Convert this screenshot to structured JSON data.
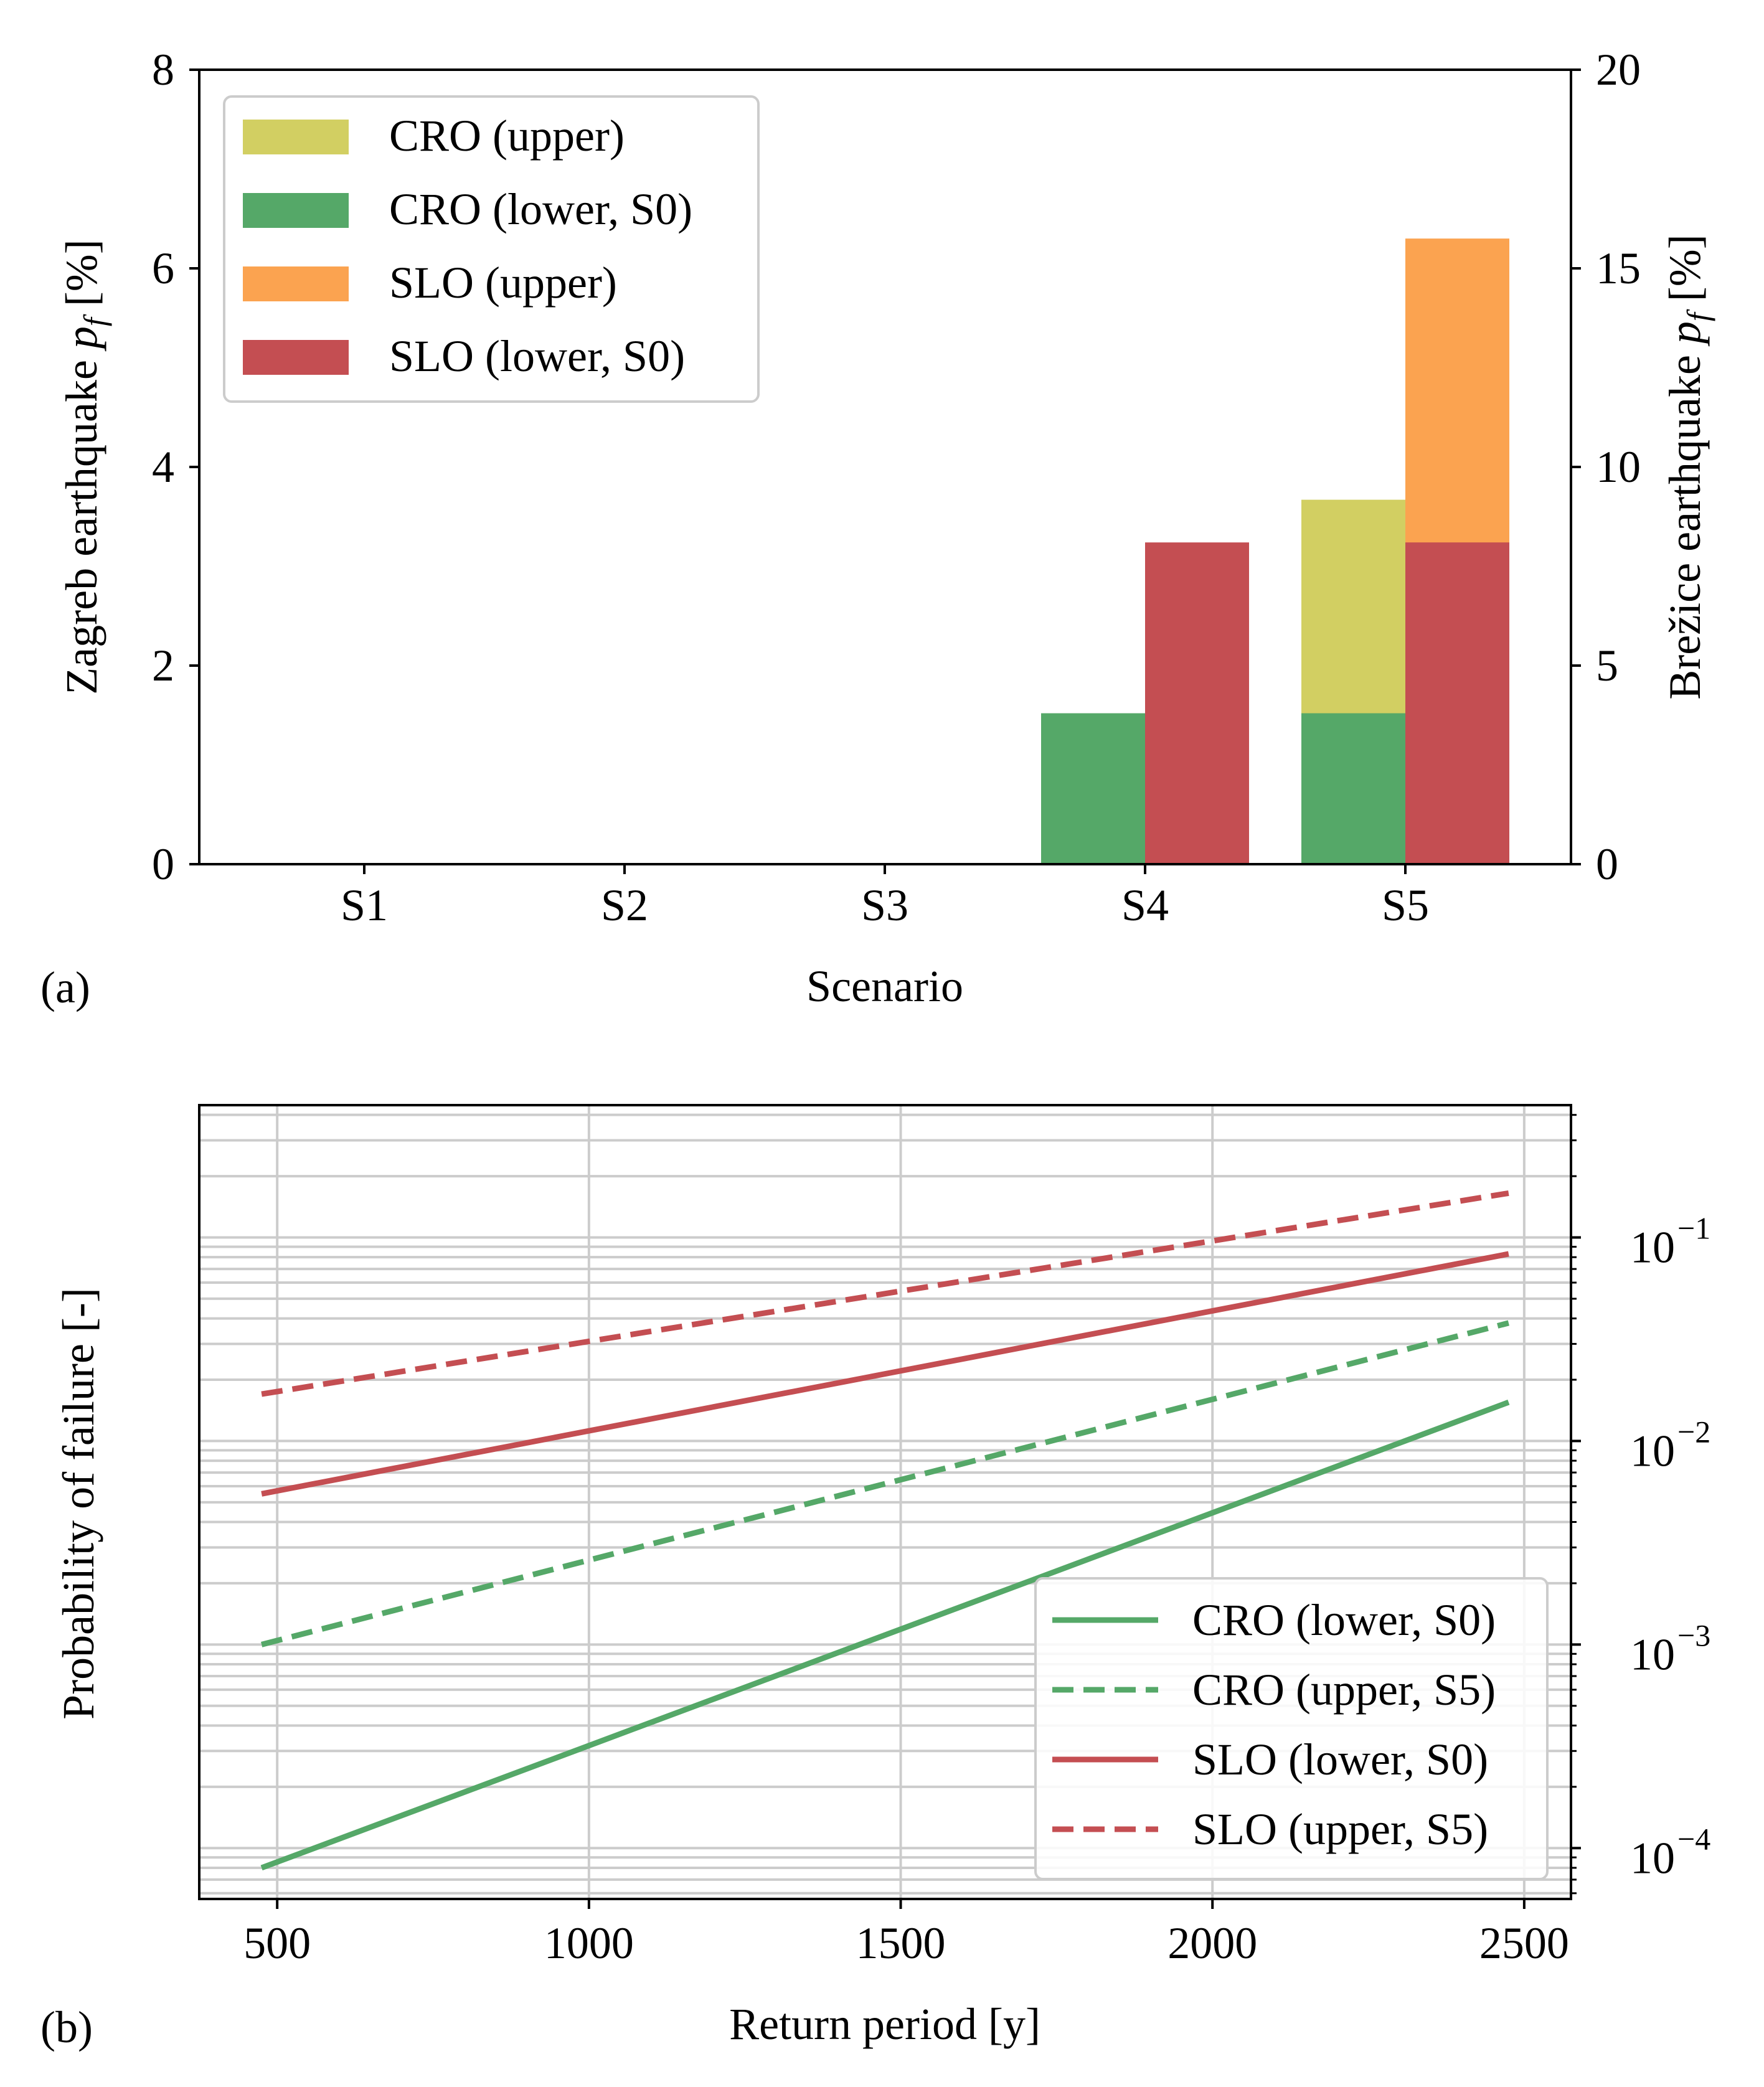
{
  "colors": {
    "cro_upper": "#d2cf62",
    "cro_lower": "#55a868",
    "slo_upper": "#fba350",
    "slo_lower": "#c44e52",
    "grid": "#cccccc",
    "axis": "#000000"
  },
  "panels": {
    "a": {
      "label": "(a)"
    },
    "b": {
      "label": "(b)"
    }
  },
  "chart_data": [
    {
      "type": "bar",
      "panel": "(a)",
      "categories": [
        "S1",
        "S2",
        "S3",
        "S4",
        "S5"
      ],
      "xlabel": "Scenario",
      "ylabel_left": "Zagreb earthquake p_f [%]",
      "ylabel_right": "Brežice earthquake p_f [%]",
      "ylim_left": [
        0,
        8
      ],
      "ylim_right": [
        0,
        20
      ],
      "yticks_left": [
        "0",
        "2",
        "4",
        "6",
        "8"
      ],
      "yticks_right": [
        "0",
        "5",
        "10",
        "15",
        "20"
      ],
      "legend_position": "top-left",
      "series": [
        {
          "name": "CRO (upper)",
          "key": "cro_upper",
          "axis": "left",
          "position": "left",
          "values": [
            0,
            0,
            0,
            0,
            3.67
          ]
        },
        {
          "name": "CRO (lower, S0)",
          "key": "cro_lower",
          "axis": "left",
          "position": "left",
          "values": [
            0,
            0,
            0,
            1.52,
            1.52
          ]
        },
        {
          "name": "SLO (upper)",
          "key": "slo_upper",
          "axis": "right",
          "position": "right",
          "values": [
            0,
            0,
            0,
            0,
            15.75
          ]
        },
        {
          "name": "SLO (lower, S0)",
          "key": "slo_lower",
          "axis": "right",
          "position": "right",
          "values": [
            0,
            0,
            0,
            8.1,
            8.1
          ]
        }
      ]
    },
    {
      "type": "line",
      "panel": "(b)",
      "xlabel": "Return period [y]",
      "ylabel": "Probability of failure [-]",
      "xlim": [
        375,
        2575
      ],
      "ylim_log10": [
        -4.25,
        -0.35
      ],
      "yscale": "log",
      "xticks": [
        "500",
        "1000",
        "1500",
        "2000",
        "2500"
      ],
      "yticks": [
        {
          "base": "10",
          "exp": "−1",
          "log": -1
        },
        {
          "base": "10",
          "exp": "−2",
          "log": -2
        },
        {
          "base": "10",
          "exp": "−3",
          "log": -3
        },
        {
          "base": "10",
          "exp": "−4",
          "log": -4
        }
      ],
      "grid": true,
      "legend_position": "bottom-right",
      "series": [
        {
          "name": "CRO (lower, S0)",
          "key": "cro_lower",
          "style": "solid",
          "x": [
            475,
            2475
          ],
          "y": [
            8e-05,
            0.0155
          ]
        },
        {
          "name": "CRO (upper, S5)",
          "key": "cro_lower",
          "style": "dashed",
          "x": [
            475,
            2475
          ],
          "y": [
            0.001,
            0.038
          ]
        },
        {
          "name": "SLO (lower, S0)",
          "key": "slo_lower",
          "style": "solid",
          "x": [
            475,
            2475
          ],
          "y": [
            0.0055,
            0.083
          ]
        },
        {
          "name": "SLO (upper, S5)",
          "key": "slo_lower",
          "style": "dashed",
          "x": [
            475,
            2475
          ],
          "y": [
            0.017,
            0.165
          ]
        }
      ]
    }
  ]
}
